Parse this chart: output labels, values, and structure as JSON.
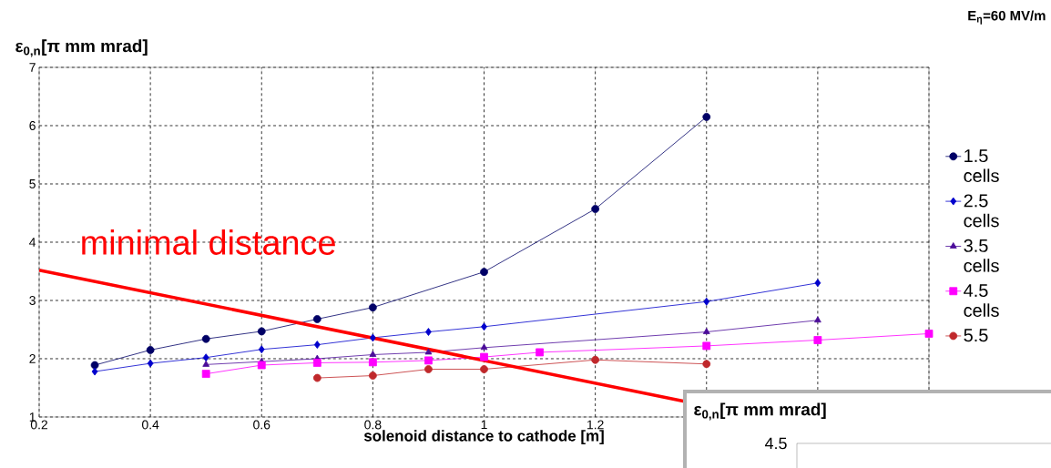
{
  "chart_data": {
    "type": "line",
    "title": "E$_{η}$=60 MV/m",
    "ylabel": "ε$_{0,n}$[π mm mrad]",
    "xlabel": "solenoid distance to cathode [m]",
    "xlim": [
      0.2,
      1.8
    ],
    "ylim": [
      1,
      7
    ],
    "xticks": [
      0.2,
      0.4,
      0.6,
      0.8,
      1,
      1.2,
      {
        "value": 1.4,
        "label": null
      },
      {
        "value": 1.6,
        "label": null
      },
      {
        "value": 1.8,
        "label": null
      }
    ],
    "yticks": [
      1,
      2,
      3,
      4,
      5,
      6,
      7
    ],
    "grid": true,
    "legend": "right",
    "series": [
      {
        "name": "1.5 cells",
        "color": "#000066",
        "marker": "circle",
        "x": [
          0.3,
          0.4,
          0.5,
          0.6,
          0.7,
          0.8,
          1.0,
          1.2,
          1.4
        ],
        "values": [
          1.89,
          2.15,
          2.34,
          2.47,
          2.68,
          2.88,
          3.49,
          4.57,
          6.15
        ]
      },
      {
        "name": "2.5 cells",
        "color": "#0000CC",
        "marker": "diamond",
        "x": [
          0.3,
          0.4,
          0.5,
          0.6,
          0.7,
          0.8,
          0.9,
          1.0,
          1.4,
          1.6
        ],
        "values": [
          1.78,
          1.92,
          2.02,
          2.16,
          2.24,
          2.36,
          2.46,
          2.55,
          2.98,
          3.3
        ]
      },
      {
        "name": "3.5 cells",
        "color": "#4B0C99",
        "marker": "triangle",
        "x": [
          0.5,
          0.6,
          0.7,
          0.8,
          0.9,
          1.0,
          1.4,
          1.6
        ],
        "values": [
          1.9,
          1.95,
          2.0,
          2.07,
          2.11,
          2.19,
          2.46,
          2.66
        ]
      },
      {
        "name": "4.5 cells",
        "color": "#FF00FF",
        "marker": "square",
        "x": [
          0.5,
          0.6,
          0.7,
          0.8,
          0.9,
          1.0,
          1.1,
          1.4,
          1.6,
          1.8
        ],
        "values": [
          1.74,
          1.89,
          1.93,
          1.94,
          1.97,
          2.03,
          2.11,
          2.22,
          2.32,
          2.43
        ]
      },
      {
        "name": "5.5",
        "color": "#C0282B",
        "marker": "circle",
        "x": [
          0.7,
          0.8,
          0.9,
          1.0,
          1.2,
          1.4
        ],
        "values": [
          1.67,
          1.71,
          1.82,
          1.82,
          1.98,
          1.91
        ]
      },
      {
        "color": "#FF0000",
        "marker": "none",
        "x": [
          0.2,
          1.36
        ],
        "values": [
          3.52,
          1.27
        ]
      }
    ],
    "annotations": [
      "minimal distance",
      "ε$_{0,n}$[π mm mrad]",
      "4.5"
    ]
  }
}
